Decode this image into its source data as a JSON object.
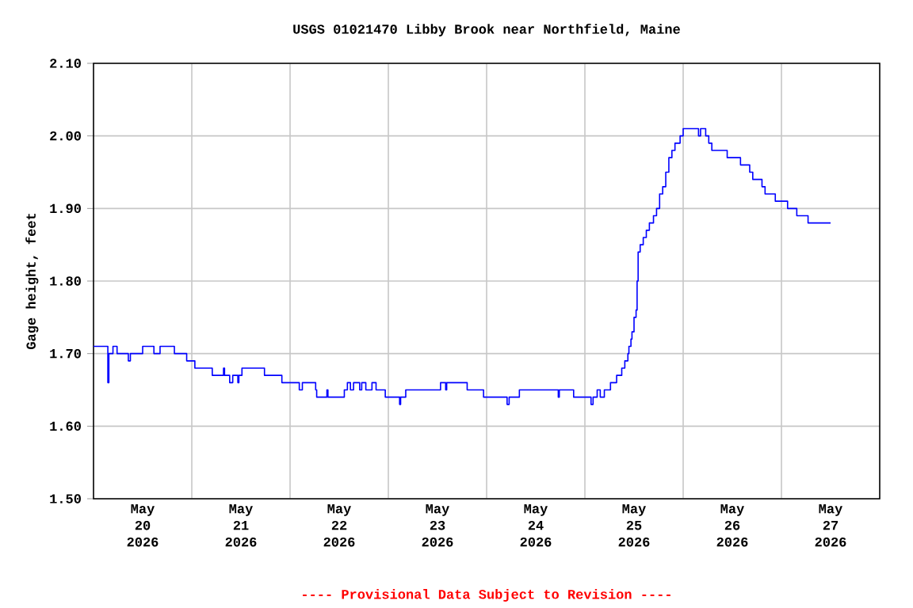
{
  "chart_data": {
    "type": "step",
    "title": "USGS 01021470 Libby Brook near Northfield, Maine",
    "ylabel": "Gage height, feet",
    "annotations": [
      "---- Provisional Data Subject to Revision ----"
    ],
    "color": "#0000ff",
    "grid": true,
    "xlim": [
      "2026-05-20T00:00",
      "2026-05-28T00:00"
    ],
    "ylim": [
      1.5,
      2.1
    ],
    "yticks": [
      {
        "value": 1.5,
        "label": "1.50"
      },
      {
        "value": 1.6,
        "label": "1.60"
      },
      {
        "value": 1.7,
        "label": "1.70"
      },
      {
        "value": 1.8,
        "label": "1.80"
      },
      {
        "value": 1.9,
        "label": "1.90"
      },
      {
        "value": 2.0,
        "label": "2.00"
      },
      {
        "value": 2.1,
        "label": "2.10"
      }
    ],
    "xticks": [
      {
        "value": "2026-05-21T00:00",
        "label": null
      },
      {
        "value": "2026-05-22T00:00",
        "label": null
      },
      {
        "value": "2026-05-23T00:00",
        "label": null
      },
      {
        "value": "2026-05-24T00:00",
        "label": null
      },
      {
        "value": "2026-05-25T00:00",
        "label": null
      },
      {
        "value": "2026-05-26T00:00",
        "label": null
      },
      {
        "value": "2026-05-27T00:00",
        "label": null
      },
      {
        "value": "2026-05-20T12:00",
        "label": "May 20 2026"
      },
      {
        "value": "2026-05-21T12:00",
        "label": "May 21 2026"
      },
      {
        "value": "2026-05-22T12:00",
        "label": "May 22 2026"
      },
      {
        "value": "2026-05-23T12:00",
        "label": "May 23 2026"
      },
      {
        "value": "2026-05-24T12:00",
        "label": "May 24 2026"
      },
      {
        "value": "2026-05-25T12:00",
        "label": "May 25 2026"
      },
      {
        "value": "2026-05-26T12:00",
        "label": "May 26 2026"
      },
      {
        "value": "2026-05-27T12:00",
        "label": "May 27 2026"
      }
    ],
    "x": [
      "2026-05-20T00:00",
      "2026-05-20T03:00",
      "2026-05-20T03:30",
      "2026-05-20T03:45",
      "2026-05-20T04:45",
      "2026-05-20T05:45",
      "2026-05-20T08:30",
      "2026-05-20T09:00",
      "2026-05-20T12:00",
      "2026-05-20T14:45",
      "2026-05-20T16:15",
      "2026-05-20T19:45",
      "2026-05-20T22:45",
      "2026-05-21T00:45",
      "2026-05-21T05:00",
      "2026-05-21T07:15",
      "2026-05-21T07:45",
      "2026-05-21T08:00",
      "2026-05-21T09:15",
      "2026-05-21T10:00",
      "2026-05-21T11:15",
      "2026-05-21T11:30",
      "2026-05-21T12:15",
      "2026-05-21T17:45",
      "2026-05-21T22:00",
      "2026-05-22T02:15",
      "2026-05-22T03:00",
      "2026-05-22T06:15",
      "2026-05-22T06:30",
      "2026-05-22T09:00",
      "2026-05-22T09:15",
      "2026-05-22T13:15",
      "2026-05-22T14:00",
      "2026-05-22T14:45",
      "2026-05-22T15:30",
      "2026-05-22T17:00",
      "2026-05-22T17:30",
      "2026-05-22T18:30",
      "2026-05-22T20:00",
      "2026-05-22T21:00",
      "2026-05-22T23:15",
      "2026-05-23T02:45",
      "2026-05-23T03:00",
      "2026-05-23T04:15",
      "2026-05-23T12:45",
      "2026-05-23T14:00",
      "2026-05-23T14:15",
      "2026-05-23T19:15",
      "2026-05-23T23:15",
      "2026-05-24T05:00",
      "2026-05-24T05:30",
      "2026-05-24T08:00",
      "2026-05-24T17:30",
      "2026-05-24T17:45",
      "2026-05-24T21:15",
      "2026-05-25T01:30",
      "2026-05-25T02:00",
      "2026-05-25T03:00",
      "2026-05-25T03:45",
      "2026-05-25T04:45",
      "2026-05-25T06:15",
      "2026-05-25T07:45",
      "2026-05-25T09:00",
      "2026-05-25T09:45",
      "2026-05-25T10:30",
      "2026-05-25T10:45",
      "2026-05-25T11:15",
      "2026-05-25T11:30",
      "2026-05-25T12:00",
      "2026-05-25T12:30",
      "2026-05-25T12:45",
      "2026-05-25T13:00",
      "2026-05-25T13:30",
      "2026-05-25T14:15",
      "2026-05-25T15:00",
      "2026-05-25T15:45",
      "2026-05-25T16:45",
      "2026-05-25T17:30",
      "2026-05-25T18:15",
      "2026-05-25T19:00",
      "2026-05-25T19:45",
      "2026-05-25T20:30",
      "2026-05-25T21:15",
      "2026-05-25T22:00",
      "2026-05-25T23:15",
      "2026-05-26T00:00",
      "2026-05-26T03:45",
      "2026-05-26T04:15",
      "2026-05-26T05:30",
      "2026-05-26T06:15",
      "2026-05-26T07:00",
      "2026-05-26T10:45",
      "2026-05-26T14:00",
      "2026-05-26T16:15",
      "2026-05-26T17:00",
      "2026-05-26T19:15",
      "2026-05-26T20:00",
      "2026-05-26T22:30",
      "2026-05-27T01:30",
      "2026-05-27T03:45",
      "2026-05-27T06:30",
      "2026-05-27T12:00"
    ],
    "values": [
      1.71,
      1.71,
      1.66,
      1.7,
      1.71,
      1.7,
      1.69,
      1.7,
      1.71,
      1.7,
      1.71,
      1.7,
      1.69,
      1.68,
      1.67,
      1.67,
      1.68,
      1.67,
      1.66,
      1.67,
      1.66,
      1.67,
      1.68,
      1.67,
      1.66,
      1.65,
      1.66,
      1.65,
      1.64,
      1.65,
      1.64,
      1.65,
      1.66,
      1.65,
      1.66,
      1.65,
      1.66,
      1.65,
      1.66,
      1.65,
      1.64,
      1.63,
      1.64,
      1.65,
      1.66,
      1.65,
      1.66,
      1.65,
      1.64,
      1.63,
      1.64,
      1.65,
      1.64,
      1.65,
      1.64,
      1.63,
      1.64,
      1.65,
      1.64,
      1.65,
      1.66,
      1.67,
      1.68,
      1.69,
      1.7,
      1.71,
      1.72,
      1.73,
      1.75,
      1.76,
      1.8,
      1.84,
      1.85,
      1.86,
      1.87,
      1.88,
      1.89,
      1.9,
      1.92,
      1.93,
      1.95,
      1.97,
      1.98,
      1.99,
      2.0,
      2.01,
      2.0,
      2.01,
      2.0,
      1.99,
      1.98,
      1.97,
      1.96,
      1.95,
      1.94,
      1.93,
      1.92,
      1.91,
      1.9,
      1.89,
      1.88,
      1.88
    ]
  }
}
